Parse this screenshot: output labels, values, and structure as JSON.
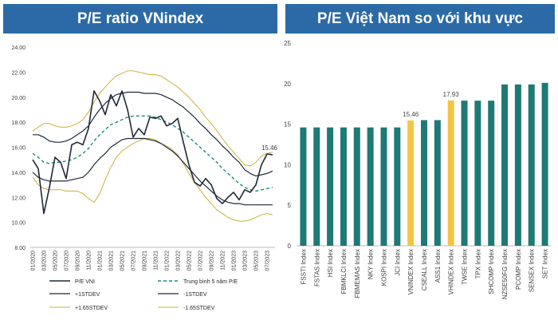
{
  "header_left": "P/E ratio VNindex",
  "header_right": "P/E Việt Nam so với khu vực",
  "chart_data": [
    {
      "type": "line",
      "title": "P/E ratio VNindex",
      "x": [
        "01/2020",
        "02/2020",
        "03/2020",
        "04/2020",
        "05/2020",
        "06/2020",
        "07/2020",
        "08/2020",
        "09/2020",
        "10/2020",
        "11/2020",
        "12/2020",
        "01/2021",
        "02/2021",
        "03/2021",
        "04/2021",
        "05/2021",
        "06/2021",
        "07/2021",
        "08/2021",
        "09/2021",
        "10/2021",
        "11/2021",
        "12/2021",
        "01/2022",
        "02/2022",
        "03/2022",
        "04/2022",
        "05/2022",
        "06/2022",
        "07/2022",
        "08/2022",
        "09/2022",
        "10/2022",
        "11/2022",
        "12/2022",
        "01/2023",
        "02/2023",
        "03/2023",
        "04/2023",
        "05/2023",
        "06/2023",
        "07/2023",
        "08/2023"
      ],
      "x_tick_labels": [
        "01/2020",
        "03/2020",
        "05/2020",
        "07/2020",
        "09/2020",
        "11/2020",
        "01/2021",
        "03/2021",
        "05/2021",
        "07/2021",
        "09/2021",
        "11/2021",
        "01/2022",
        "03/2022",
        "05/2022",
        "07/2022",
        "09/2022",
        "11/2022",
        "01/2023",
        "03/2023",
        "05/2023",
        "07/2023"
      ],
      "ylim": [
        8,
        24
      ],
      "y_ticks": [
        "8.00",
        "10.00",
        "12.00",
        "14.00",
        "16.00",
        "18.00",
        "20.00",
        "22.00",
        "24.00"
      ],
      "series": [
        {
          "name": "P/E VNI",
          "color": "#1f2838",
          "dash": "solid",
          "width": 1.6,
          "values": [
            15.0,
            14.3,
            10.7,
            12.8,
            15.2,
            14.8,
            13.5,
            16.2,
            16.4,
            16.2,
            17.5,
            20.5,
            19.7,
            18.6,
            20.2,
            19.3,
            20.5,
            19.0,
            16.8,
            17.5,
            17.0,
            18.4,
            18.3,
            18.5,
            17.7,
            17.9,
            18.3,
            16.4,
            14.6,
            13.2,
            12.9,
            13.5,
            13.0,
            11.9,
            11.5,
            12.0,
            12.4,
            11.8,
            12.6,
            12.4,
            13.0,
            14.6,
            15.46,
            15.4
          ]
        },
        {
          "name": "Trung bình 5 năm P/E",
          "color": "#1e8a7c",
          "dash": "4,3",
          "width": 1.4,
          "values": [
            15.5,
            15.2,
            14.8,
            14.7,
            14.8,
            14.8,
            14.9,
            15.0,
            15.2,
            15.5,
            15.9,
            16.5,
            17.0,
            17.4,
            17.8,
            18.0,
            18.2,
            18.4,
            18.5,
            18.5,
            18.5,
            18.5,
            18.4,
            18.2,
            18.0,
            17.8,
            17.5,
            17.2,
            16.8,
            16.4,
            16.0,
            15.6,
            15.2,
            14.8,
            14.3,
            13.9,
            13.5,
            13.1,
            12.8,
            12.6,
            12.5,
            12.6,
            12.7,
            12.8
          ]
        },
        {
          "name": "+1STDEV",
          "color": "#1f2838",
          "dash": "solid",
          "width": 1.2,
          "values": [
            17.0,
            17.0,
            16.8,
            16.5,
            16.4,
            16.4,
            16.5,
            16.7,
            17.0,
            17.3,
            17.7,
            18.4,
            19.0,
            19.5,
            19.9,
            20.2,
            20.3,
            20.4,
            20.4,
            20.4,
            20.3,
            20.3,
            20.3,
            20.2,
            20.0,
            19.8,
            19.5,
            19.2,
            18.8,
            18.4,
            17.9,
            17.5,
            17.0,
            16.6,
            16.1,
            15.7,
            15.2,
            14.8,
            14.2,
            13.9,
            13.7,
            13.8,
            13.9,
            14.1
          ]
        },
        {
          "name": "-1STDEV",
          "color": "#1f2838",
          "dash": "solid",
          "width": 1.2,
          "values": [
            14.0,
            13.6,
            13.4,
            13.3,
            13.3,
            13.3,
            13.3,
            13.4,
            13.5,
            13.6,
            14.0,
            14.6,
            15.1,
            15.5,
            16.0,
            16.3,
            16.6,
            16.7,
            16.7,
            16.7,
            16.7,
            16.6,
            16.5,
            16.3,
            16.0,
            15.7,
            15.3,
            14.8,
            14.3,
            13.8,
            13.3,
            12.9,
            12.5,
            12.1,
            11.8,
            11.6,
            11.5,
            11.5,
            11.4,
            11.4,
            11.4,
            11.4,
            11.4,
            11.4
          ]
        },
        {
          "name": "+1.65STDEV",
          "color": "#c9b23a",
          "dash": "solid",
          "width": 1.0,
          "values": [
            17.3,
            17.6,
            17.9,
            17.9,
            17.7,
            17.6,
            17.6,
            17.7,
            17.9,
            18.2,
            18.8,
            19.6,
            20.3,
            20.8,
            21.3,
            21.7,
            21.9,
            22.1,
            22.1,
            22.0,
            21.9,
            21.8,
            21.8,
            21.7,
            21.4,
            21.1,
            20.8,
            20.4,
            20.0,
            19.5,
            19.0,
            18.4,
            17.9,
            17.3,
            16.7,
            16.1,
            15.6,
            15.1,
            14.6,
            14.5,
            14.8,
            15.3,
            15.5,
            15.6
          ]
        },
        {
          "name": "-1.65STDEV",
          "color": "#c9b23a",
          "dash": "solid",
          "width": 1.0,
          "values": [
            13.6,
            13.0,
            12.7,
            12.6,
            12.6,
            12.6,
            12.5,
            12.5,
            12.5,
            12.3,
            11.9,
            11.6,
            12.3,
            13.4,
            14.4,
            15.2,
            15.7,
            16.0,
            16.3,
            16.5,
            16.7,
            16.7,
            16.6,
            16.3,
            16.1,
            15.8,
            15.4,
            14.7,
            13.9,
            13.2,
            12.6,
            12.0,
            11.5,
            11.0,
            10.7,
            10.4,
            10.2,
            10.1,
            10.1,
            10.2,
            10.4,
            10.6,
            10.7,
            10.6
          ]
        }
      ],
      "annotations": [
        {
          "series": "P/E VNI",
          "x": "07/2023",
          "text": "15.46"
        }
      ],
      "legend": {
        "placement": "bottom",
        "columns": 2
      },
      "grid": false
    },
    {
      "type": "bar",
      "title": "P/E Việt Nam so với khu vực",
      "categories": [
        "FSSTI Index",
        "FSTAS Index",
        "HSI Index",
        "FBMKLCI Index",
        "FBMEMAS Index",
        "NKY Index",
        "KOSPI Index",
        "JCI Index",
        "VNINDEX Index",
        "CSEALL Index",
        "ASS1 Index",
        "VHINDEX Index",
        "TWSE Index",
        "TPX Index",
        "SHCOMP Index",
        "NZSE50FG Index",
        "PCOMP Index",
        "SENSEX Index",
        "SET Index"
      ],
      "values": [
        14.6,
        14.6,
        14.6,
        14.6,
        14.6,
        14.6,
        14.6,
        14.6,
        15.46,
        15.5,
        15.5,
        17.93,
        17.9,
        17.9,
        17.9,
        19.9,
        19.9,
        19.9,
        20.1
      ],
      "highlight": [
        "VNINDEX Index",
        "VHINDEX Index"
      ],
      "data_labels": {
        "VNINDEX Index": "15.46",
        "VHINDEX Index": "17.93"
      },
      "colors": {
        "default": "#1e7a76",
        "highlight": "#f4c542"
      },
      "ylim": [
        0,
        25
      ],
      "y_ticks": [
        "0",
        "5",
        "10",
        "15",
        "20",
        "25"
      ],
      "grid": false
    }
  ]
}
